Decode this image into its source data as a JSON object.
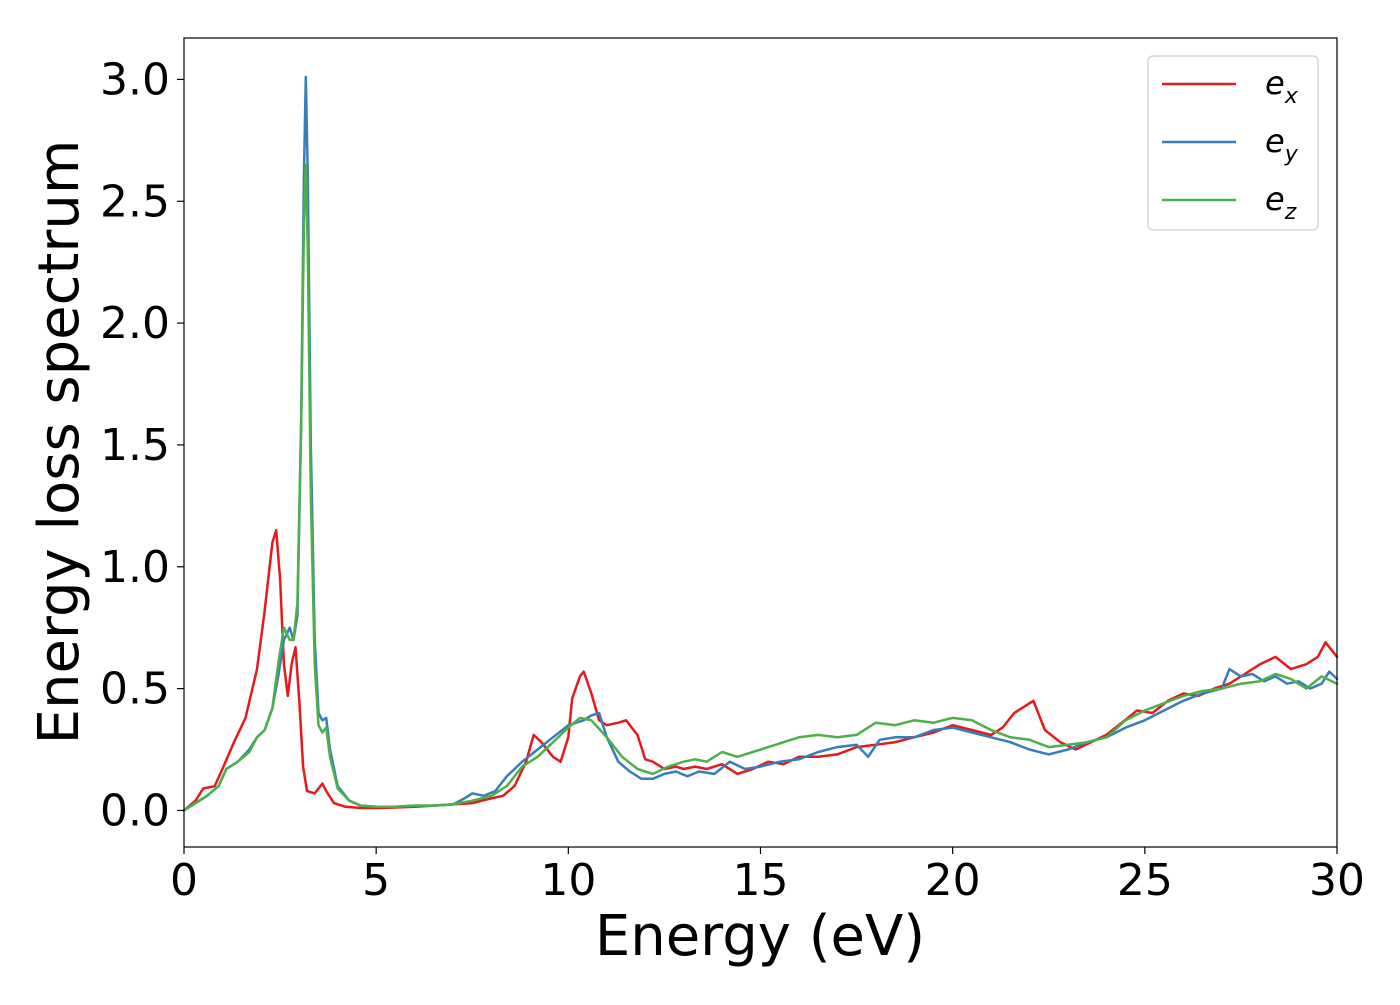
{
  "chart_data": {
    "type": "line",
    "title": "",
    "xlabel": "Energy (eV)",
    "ylabel": "Energy loss spectrum",
    "xlim": [
      0,
      30
    ],
    "ylim": [
      -0.15,
      3.17
    ],
    "xticks": [
      0,
      5,
      10,
      15,
      20,
      25,
      30
    ],
    "xtick_labels": [
      "0",
      "5",
      "10",
      "15",
      "20",
      "25",
      "30"
    ],
    "yticks": [
      0.0,
      0.5,
      1.0,
      1.5,
      2.0,
      2.5,
      3.0
    ],
    "ytick_labels": [
      "0.0",
      "0.5",
      "1.0",
      "1.5",
      "2.0",
      "2.5",
      "3.0"
    ],
    "grid": false,
    "legend_position": "top-right",
    "series": [
      {
        "name": "e_x",
        "label_main": "e",
        "label_sub": "x",
        "color": "#e41a1c",
        "x": [
          0,
          0.3,
          0.5,
          0.8,
          1.0,
          1.3,
          1.6,
          1.9,
          2.1,
          2.3,
          2.4,
          2.5,
          2.6,
          2.7,
          2.8,
          2.9,
          3.0,
          3.1,
          3.2,
          3.4,
          3.6,
          3.7,
          3.9,
          4.2,
          4.6,
          5.0,
          5.5,
          6,
          6.5,
          7,
          7.5,
          8,
          8.3,
          8.6,
          8.9,
          9.1,
          9.3,
          9.6,
          9.8,
          10.0,
          10.1,
          10.3,
          10.4,
          10.6,
          10.8,
          11.0,
          11.3,
          11.5,
          11.8,
          12.0,
          12.2,
          12.5,
          12.8,
          13.0,
          13.3,
          13.6,
          14.0,
          14.4,
          14.8,
          15.2,
          15.6,
          16.0,
          16.5,
          17.0,
          17.5,
          18.0,
          18.5,
          19.0,
          19.5,
          20.0,
          20.5,
          21.0,
          21.3,
          21.6,
          21.9,
          22.1,
          22.4,
          22.8,
          23.2,
          23.6,
          24.0,
          24.4,
          24.8,
          25.2,
          25.6,
          26.0,
          26.4,
          26.8,
          27.2,
          27.6,
          28.0,
          28.4,
          28.8,
          29.2,
          29.5,
          29.7,
          30.0
        ],
        "values": [
          0.0,
          0.04,
          0.09,
          0.1,
          0.17,
          0.28,
          0.38,
          0.58,
          0.82,
          1.1,
          1.15,
          0.95,
          0.6,
          0.47,
          0.6,
          0.67,
          0.45,
          0.18,
          0.08,
          0.07,
          0.11,
          0.08,
          0.03,
          0.015,
          0.01,
          0.01,
          0.012,
          0.015,
          0.02,
          0.025,
          0.03,
          0.05,
          0.06,
          0.1,
          0.2,
          0.31,
          0.28,
          0.22,
          0.2,
          0.3,
          0.46,
          0.55,
          0.57,
          0.48,
          0.37,
          0.35,
          0.36,
          0.37,
          0.31,
          0.21,
          0.2,
          0.17,
          0.18,
          0.17,
          0.18,
          0.17,
          0.19,
          0.15,
          0.17,
          0.2,
          0.19,
          0.22,
          0.22,
          0.23,
          0.26,
          0.27,
          0.28,
          0.3,
          0.32,
          0.35,
          0.33,
          0.31,
          0.34,
          0.4,
          0.43,
          0.45,
          0.33,
          0.28,
          0.25,
          0.28,
          0.31,
          0.36,
          0.41,
          0.4,
          0.45,
          0.48,
          0.47,
          0.5,
          0.52,
          0.56,
          0.6,
          0.63,
          0.58,
          0.6,
          0.63,
          0.69,
          0.63
        ]
      },
      {
        "name": "e_y",
        "label_main": "e",
        "label_sub": "y",
        "color": "#377eb8",
        "x": [
          0,
          0.3,
          0.6,
          0.9,
          1.1,
          1.4,
          1.7,
          1.9,
          2.1,
          2.3,
          2.45,
          2.6,
          2.75,
          2.85,
          2.95,
          3.05,
          3.12,
          3.17,
          3.22,
          3.3,
          3.4,
          3.5,
          3.6,
          3.7,
          3.8,
          4.0,
          4.3,
          4.6,
          5.0,
          5.5,
          6,
          6.5,
          7,
          7.3,
          7.5,
          7.8,
          8.1,
          8.4,
          8.8,
          9.2,
          9.6,
          10.0,
          10.4,
          10.6,
          10.8,
          11.0,
          11.3,
          11.6,
          11.9,
          12.2,
          12.5,
          12.8,
          13.1,
          13.4,
          13.8,
          14.2,
          14.6,
          15.0,
          15.5,
          16.0,
          16.5,
          17.0,
          17.5,
          17.8,
          18.1,
          18.5,
          19.0,
          19.5,
          20.0,
          20.5,
          21.0,
          21.5,
          22.0,
          22.5,
          23.0,
          23.5,
          24.0,
          24.5,
          25.0,
          25.5,
          26.0,
          26.5,
          27.0,
          27.2,
          27.5,
          27.8,
          28.1,
          28.4,
          28.7,
          29.0,
          29.3,
          29.6,
          29.8,
          30.0
        ],
        "values": [
          0.0,
          0.03,
          0.06,
          0.1,
          0.17,
          0.2,
          0.25,
          0.3,
          0.33,
          0.42,
          0.55,
          0.7,
          0.75,
          0.7,
          0.8,
          1.6,
          2.6,
          3.01,
          2.6,
          1.5,
          0.7,
          0.4,
          0.37,
          0.38,
          0.25,
          0.1,
          0.04,
          0.02,
          0.015,
          0.015,
          0.02,
          0.02,
          0.025,
          0.05,
          0.07,
          0.06,
          0.08,
          0.14,
          0.2,
          0.25,
          0.3,
          0.35,
          0.37,
          0.39,
          0.4,
          0.3,
          0.2,
          0.16,
          0.13,
          0.13,
          0.15,
          0.16,
          0.14,
          0.16,
          0.15,
          0.2,
          0.17,
          0.18,
          0.2,
          0.21,
          0.24,
          0.26,
          0.27,
          0.22,
          0.29,
          0.3,
          0.3,
          0.33,
          0.34,
          0.32,
          0.3,
          0.28,
          0.25,
          0.23,
          0.25,
          0.28,
          0.3,
          0.34,
          0.37,
          0.41,
          0.45,
          0.48,
          0.5,
          0.58,
          0.55,
          0.56,
          0.53,
          0.55,
          0.52,
          0.53,
          0.5,
          0.52,
          0.57,
          0.54
        ]
      },
      {
        "name": "e_z",
        "label_main": "e",
        "label_sub": "z",
        "color": "#4daf4a",
        "x": [
          0,
          0.3,
          0.6,
          0.9,
          1.1,
          1.4,
          1.7,
          1.9,
          2.1,
          2.3,
          2.45,
          2.6,
          2.75,
          2.85,
          2.95,
          3.05,
          3.12,
          3.17,
          3.22,
          3.3,
          3.4,
          3.5,
          3.6,
          3.7,
          3.8,
          4.0,
          4.3,
          4.6,
          5.0,
          5.5,
          6,
          6.5,
          7,
          7.5,
          8.0,
          8.4,
          8.8,
          9.2,
          9.6,
          10.0,
          10.3,
          10.6,
          11.0,
          11.4,
          11.8,
          12.2,
          12.6,
          13.0,
          13.3,
          13.6,
          14.0,
          14.4,
          14.8,
          15.2,
          15.6,
          16.0,
          16.5,
          17.0,
          17.5,
          18.0,
          18.5,
          19.0,
          19.5,
          20.0,
          20.5,
          21.0,
          21.5,
          22.0,
          22.5,
          23.0,
          23.5,
          24.0,
          24.5,
          25.0,
          25.5,
          26.0,
          26.5,
          27.0,
          27.5,
          28.0,
          28.4,
          28.8,
          29.2,
          29.6,
          30.0
        ],
        "values": [
          0.0,
          0.03,
          0.06,
          0.1,
          0.17,
          0.2,
          0.24,
          0.3,
          0.33,
          0.42,
          0.6,
          0.75,
          0.7,
          0.7,
          0.85,
          1.6,
          2.4,
          2.65,
          2.3,
          1.3,
          0.6,
          0.35,
          0.32,
          0.34,
          0.22,
          0.09,
          0.04,
          0.02,
          0.015,
          0.015,
          0.02,
          0.02,
          0.025,
          0.04,
          0.06,
          0.1,
          0.18,
          0.22,
          0.28,
          0.34,
          0.38,
          0.37,
          0.3,
          0.22,
          0.17,
          0.15,
          0.18,
          0.2,
          0.21,
          0.2,
          0.24,
          0.22,
          0.24,
          0.26,
          0.28,
          0.3,
          0.31,
          0.3,
          0.31,
          0.36,
          0.35,
          0.37,
          0.36,
          0.38,
          0.37,
          0.33,
          0.3,
          0.29,
          0.26,
          0.27,
          0.28,
          0.3,
          0.37,
          0.41,
          0.44,
          0.47,
          0.49,
          0.5,
          0.52,
          0.53,
          0.56,
          0.54,
          0.5,
          0.55,
          0.52
        ]
      }
    ]
  }
}
